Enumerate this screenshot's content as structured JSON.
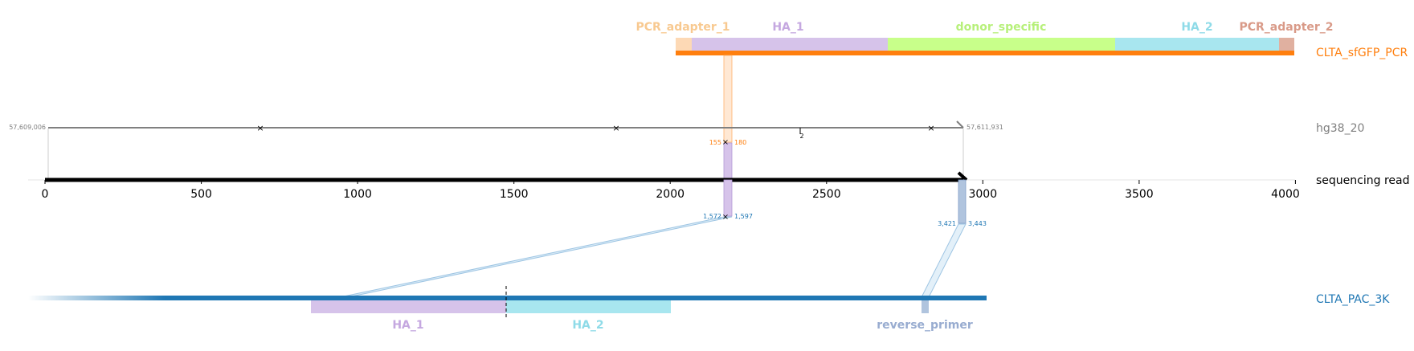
{
  "colors": {
    "donor": "#ff7f0e",
    "genome": "#808080",
    "read": "#000000",
    "pac": "#1f77b4",
    "pcr_adapter_1": "#fdd9b5",
    "ha_1": "#d6c3ea",
    "donor_specific": "#c8ff8a",
    "ha_2": "#a8e6ef",
    "pcr_adapter_2": "#e0b0a0",
    "reverse_primer": "#b0c4de"
  },
  "tracks": {
    "donor": {
      "label": "CLTA_sfGFP_PCR"
    },
    "genome": {
      "label": "hg38_20",
      "start_label": "57,609,006",
      "end_label": "57,611,931",
      "small_label": "2"
    },
    "read": {
      "label": "sequencing read"
    },
    "pac": {
      "label": "CLTA_PAC_3K"
    }
  },
  "donor_features": [
    {
      "name": "PCR_adapter_1",
      "color": "#fdd9b5",
      "label_color": "#f8c990"
    },
    {
      "name": "HA_1",
      "color": "#d6c3ea",
      "label_color": "#c5a8e0"
    },
    {
      "name": "donor_specific",
      "color": "#c8ff8a",
      "label_color": "#b7f07a"
    },
    {
      "name": "HA_2",
      "color": "#a8e6ef",
      "label_color": "#8fdbe8"
    },
    {
      "name": "PCR_adapter_2",
      "color": "#e0b0a0",
      "label_color": "#d99a88"
    }
  ],
  "pac_features": [
    {
      "name": "HA_1",
      "color": "#d6c3ea",
      "label_color": "#c5a8e0"
    },
    {
      "name": "HA_2",
      "color": "#a8e6ef",
      "label_color": "#8fdbe8"
    },
    {
      "name": "reverse_primer",
      "color": "#b0c4de",
      "label_color": "#98acd0"
    }
  ],
  "axis": {
    "ticks": [
      "0",
      "500",
      "1000",
      "1500",
      "2000",
      "2500",
      "3000",
      "3500",
      "4000"
    ]
  },
  "alignments": {
    "donor_read": {
      "left_label": "155",
      "right_label": "180"
    },
    "pac_read_1": {
      "left_label": "1,572",
      "right_label": "1,597"
    },
    "pac_read_2": {
      "left_label": "3,421",
      "right_label": "3,443"
    }
  }
}
